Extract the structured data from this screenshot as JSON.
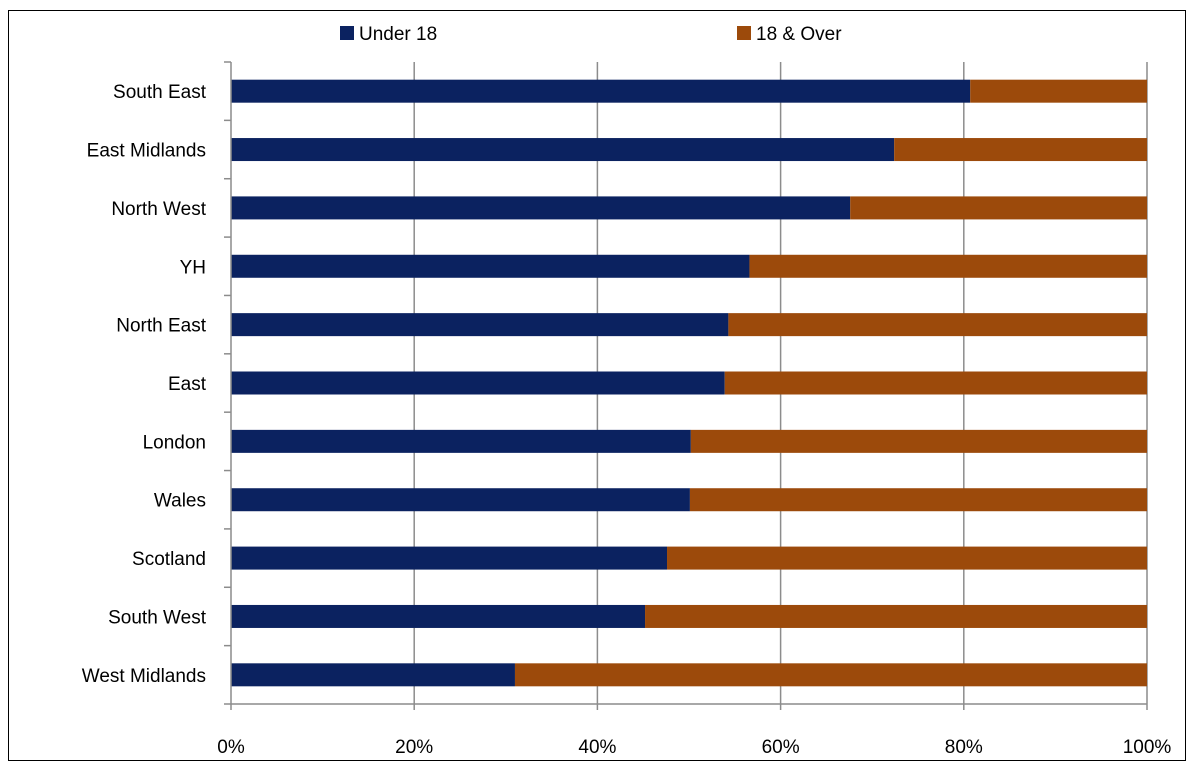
{
  "chart_data": {
    "type": "bar",
    "orientation": "horizontal",
    "stacked": "percent",
    "title": "",
    "xlabel": "",
    "ylabel": "",
    "categories": [
      "South East",
      "East Midlands",
      "North West",
      "YH",
      "North East",
      "East",
      "London",
      "Wales",
      "Scotland",
      "South West",
      "West Midlands"
    ],
    "series": [
      {
        "name": "Under 18",
        "color": "#0b2260",
        "values": [
          80.7,
          72.4,
          67.6,
          56.6,
          54.3,
          53.9,
          50.2,
          50.1,
          47.6,
          45.2,
          31.0
        ]
      },
      {
        "name": "18 & Over",
        "color": "#9c4a0b",
        "values": [
          19.3,
          27.6,
          32.4,
          43.4,
          45.7,
          46.1,
          49.8,
          49.9,
          52.4,
          54.8,
          69.0
        ]
      }
    ],
    "xlim": [
      0,
      100
    ],
    "x_ticks": [
      "0%",
      "20%",
      "40%",
      "60%",
      "80%",
      "100%"
    ],
    "grid": "vertical",
    "legend_position": "top"
  }
}
